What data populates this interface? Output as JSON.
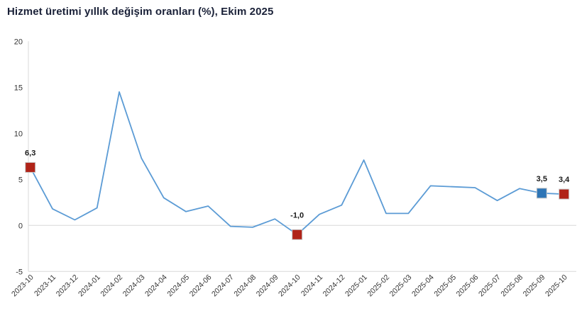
{
  "header": {
    "title": "Hizmet üretimi yıllık değişim oranları (%), Ekim 2025"
  },
  "colors": {
    "line": "#5b9bd5",
    "marker_red": "#b02318",
    "marker_blue": "#2e75b6",
    "axis_line": "#d9d9d9",
    "tick_text": "#333333",
    "data_label_text": "#1a1a1a",
    "title_text": "#1a2138",
    "background": "#ffffff"
  },
  "chart_data": {
    "type": "line",
    "title": "Hizmet üretimi yıllık değişim oranları (%), Ekim 2025",
    "xlabel": "",
    "ylabel": "",
    "categories": [
      "2023-10",
      "2023-11",
      "2023-12",
      "2024-01",
      "2024-02",
      "2024-03",
      "2024-04",
      "2024-05",
      "2024-06",
      "2024-07",
      "2024-08",
      "2024-09",
      "2024-10",
      "2024-11",
      "2024-12",
      "2025-01",
      "2025-02",
      "2025-03",
      "2025-04",
      "2025-05",
      "2025-06",
      "2025-07",
      "2025-08",
      "2025-09",
      "2025-10"
    ],
    "values": [
      6.3,
      1.8,
      0.6,
      1.9,
      14.5,
      7.3,
      3.0,
      1.5,
      2.1,
      -0.1,
      -0.2,
      0.7,
      -1.0,
      1.2,
      2.2,
      7.1,
      1.3,
      1.3,
      4.3,
      4.2,
      4.1,
      2.7,
      4.0,
      3.5,
      3.4
    ],
    "ylim": [
      -5,
      20
    ],
    "yticks": [
      20,
      15,
      10,
      5,
      0,
      -5
    ],
    "grid": "zero-line-and-bottom-only",
    "legend": "none",
    "marked_points": [
      {
        "index": 0,
        "label": "6,3",
        "color": "#b02318",
        "dy": -17
      },
      {
        "index": 12,
        "label": "-1,0",
        "color": "#b02318",
        "dy": -24
      },
      {
        "index": 23,
        "label": "3,5",
        "color": "#2e75b6",
        "dy": -17
      },
      {
        "index": 24,
        "label": "3,4",
        "color": "#b02318",
        "dy": -17
      }
    ]
  }
}
